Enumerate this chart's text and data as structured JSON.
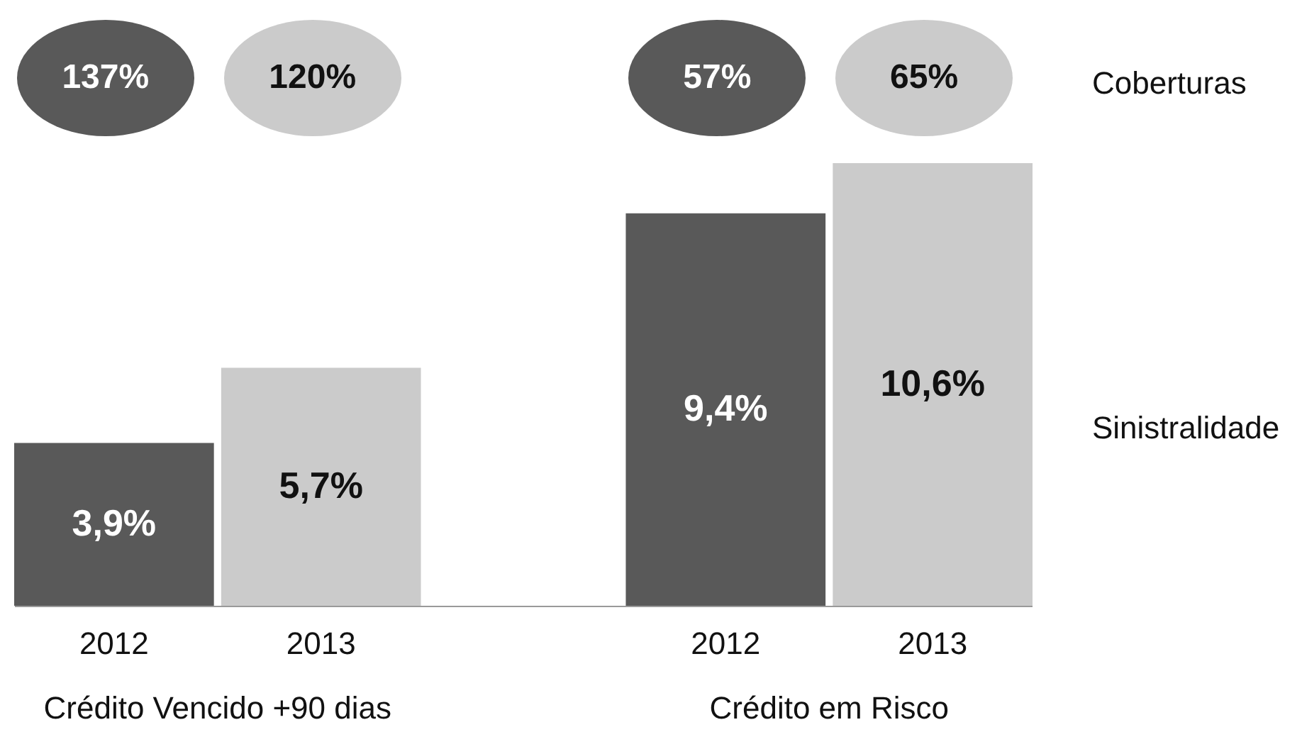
{
  "chart_data": {
    "type": "bar",
    "categories": [
      "Crédito Vencido +90 dias",
      "Crédito em Risco"
    ],
    "series": [
      {
        "name": "2012",
        "color": "#595959",
        "values": [
          3.9,
          9.4
        ],
        "value_labels": [
          "3,9%",
          "9,4%"
        ]
      },
      {
        "name": "2013",
        "color": "#cbcbcb",
        "values": [
          5.7,
          10.6
        ],
        "value_labels": [
          "5,7%",
          "10,6%"
        ]
      }
    ],
    "annotations": [
      "137%",
      "120%",
      "57%",
      "65%",
      "Coberturas",
      "Sinistralidade"
    ],
    "legend": false,
    "grid": false
  }
}
